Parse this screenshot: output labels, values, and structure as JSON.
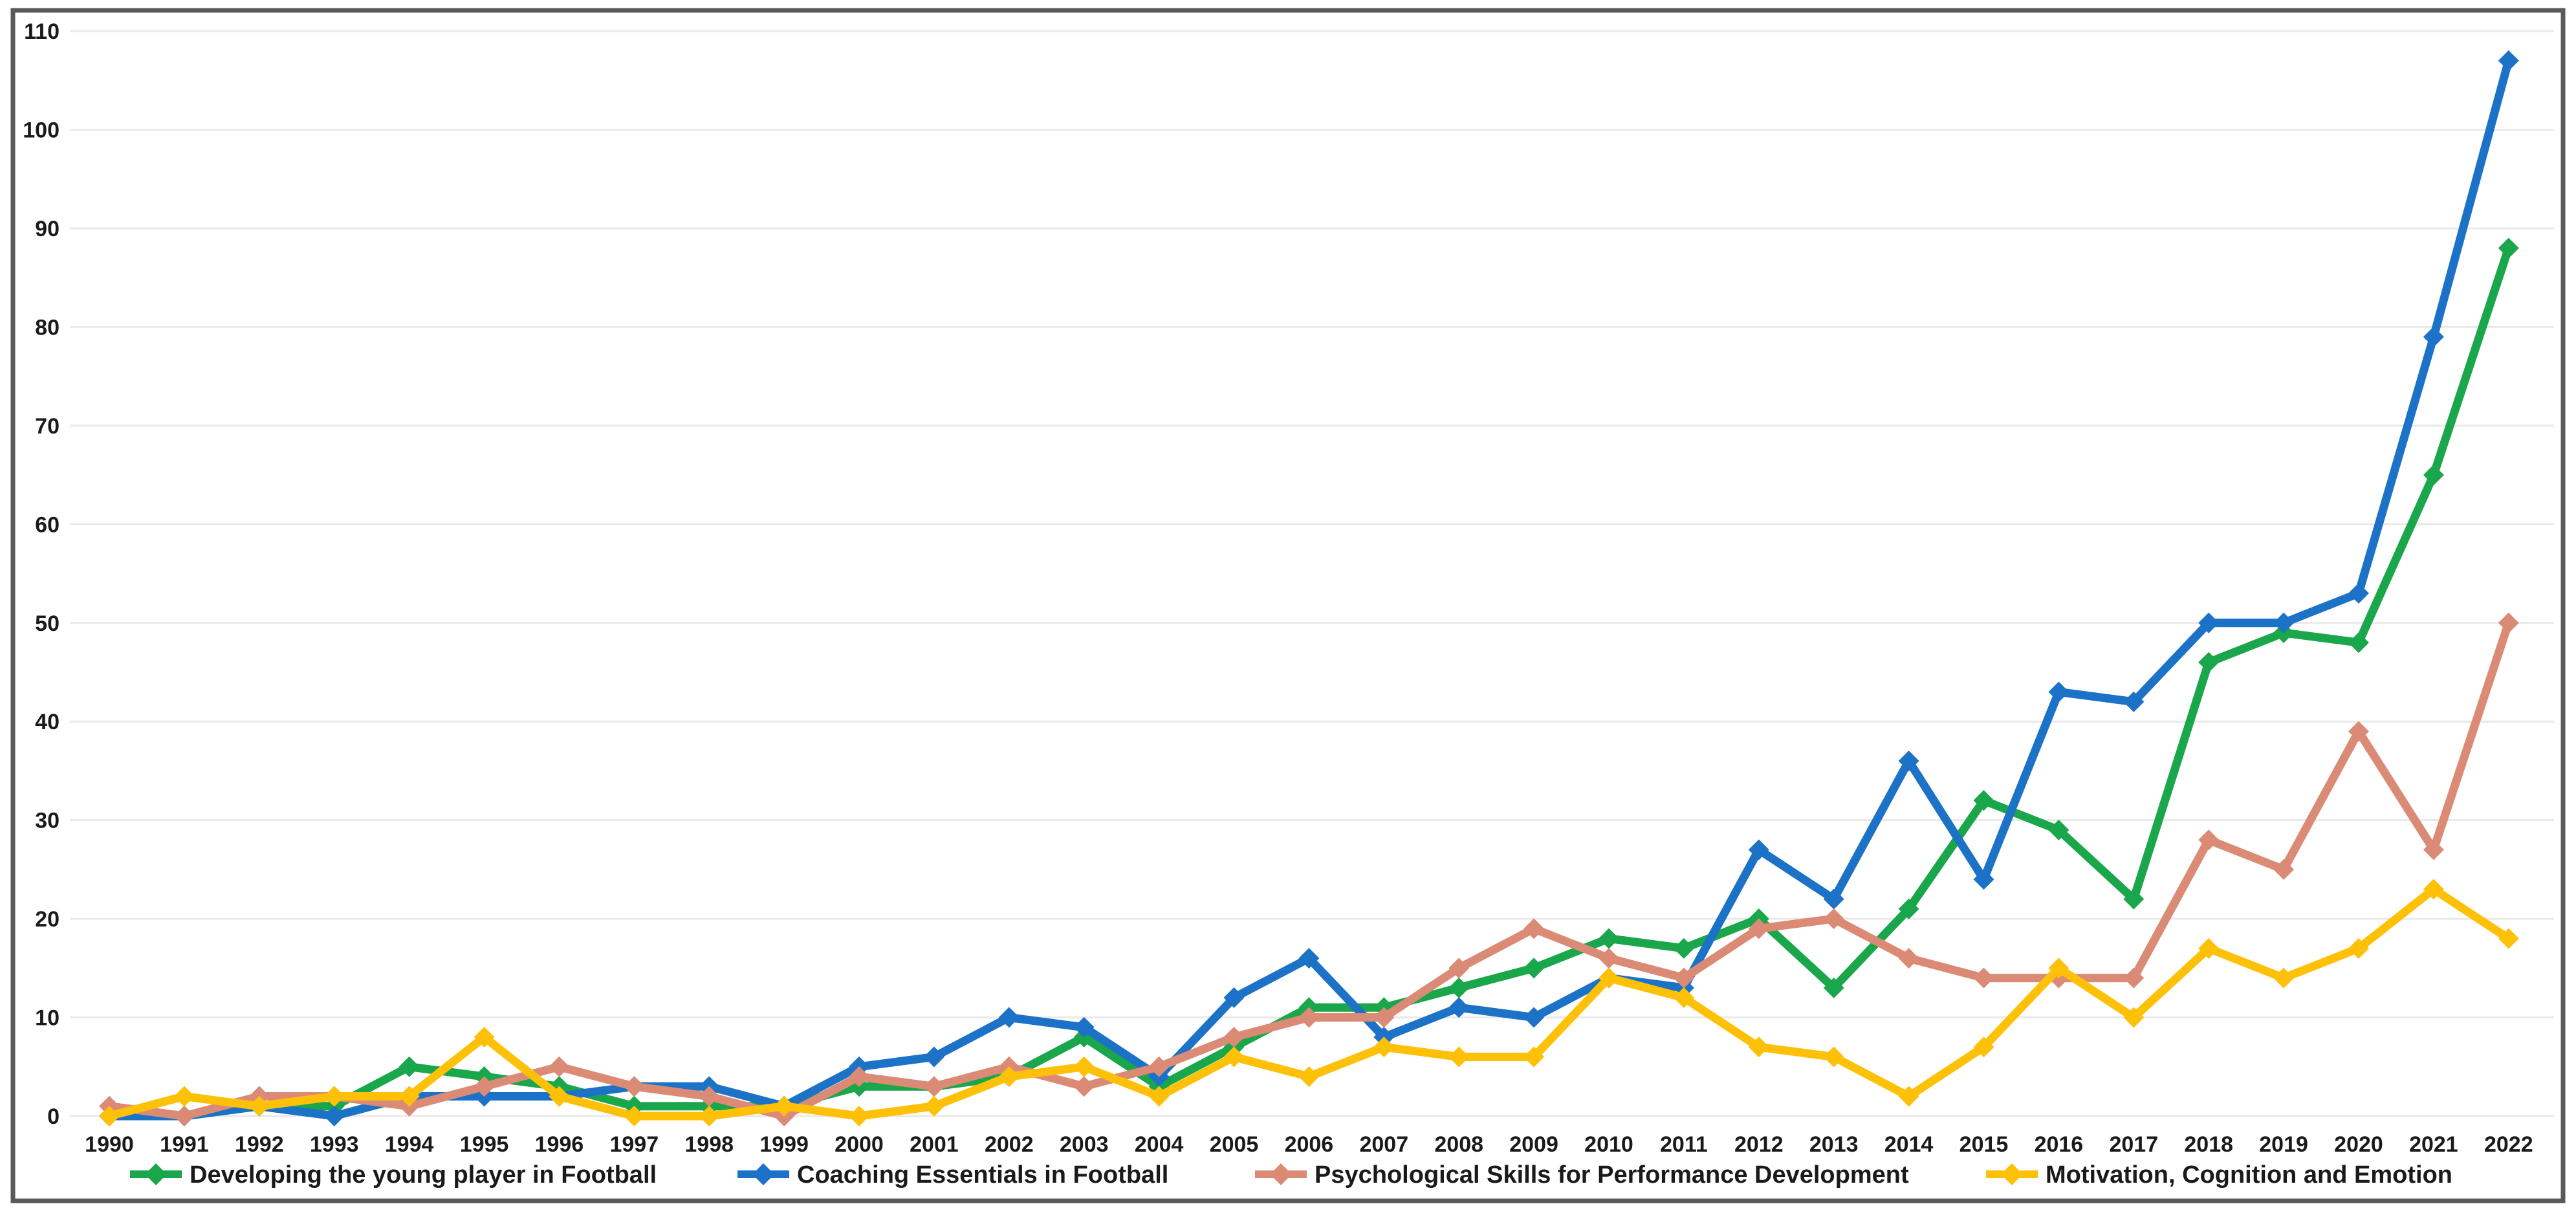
{
  "chart_data": {
    "type": "line",
    "title": "",
    "xlabel": "",
    "ylabel": "",
    "x": [
      "1990",
      "1991",
      "1992",
      "1993",
      "1994",
      "1995",
      "1996",
      "1997",
      "1998",
      "1999",
      "2000",
      "2001",
      "2002",
      "2003",
      "2004",
      "2005",
      "2006",
      "2007",
      "2008",
      "2009",
      "2010",
      "2011",
      "2012",
      "2013",
      "2014",
      "2015",
      "2016",
      "2017",
      "2018",
      "2019",
      "2020",
      "2021",
      "2022"
    ],
    "series": [
      {
        "name": "Developing the young player in Football",
        "color": "#1aa64a",
        "values": [
          0,
          0,
          1,
          1,
          5,
          4,
          3,
          1,
          1,
          1,
          3,
          3,
          4,
          8,
          3,
          7,
          11,
          11,
          13,
          15,
          18,
          17,
          20,
          13,
          21,
          32,
          29,
          22,
          46,
          49,
          48,
          65,
          88
        ]
      },
      {
        "name": "Coaching Essentials in Football",
        "color": "#1b72c6",
        "values": [
          0,
          0,
          1,
          0,
          2,
          2,
          2,
          3,
          3,
          1,
          5,
          6,
          10,
          9,
          4,
          12,
          16,
          8,
          11,
          10,
          14,
          13,
          27,
          22,
          36,
          24,
          43,
          42,
          50,
          50,
          53,
          79,
          107
        ]
      },
      {
        "name": "Psychological Skills for Performance Development",
        "color": "#db8b75",
        "values": [
          1,
          0,
          2,
          2,
          1,
          3,
          5,
          3,
          2,
          0,
          4,
          3,
          5,
          3,
          5,
          8,
          10,
          10,
          15,
          19,
          16,
          14,
          19,
          20,
          16,
          14,
          14,
          14,
          28,
          25,
          39,
          27,
          50
        ]
      },
      {
        "name": "Motivation, Cognition and Emotion",
        "color": "#ffc008",
        "values": [
          0,
          2,
          1,
          2,
          2,
          8,
          2,
          0,
          0,
          1,
          0,
          1,
          4,
          5,
          2,
          6,
          4,
          7,
          6,
          6,
          14,
          12,
          7,
          6,
          2,
          7,
          15,
          10,
          17,
          14,
          17,
          23,
          18
        ]
      }
    ],
    "ylim": [
      0,
      110
    ],
    "ytick_step": 10,
    "grid": true,
    "legend_position": "bottom"
  },
  "colors": {
    "background": "#ffffff",
    "grid": "#e9e9e9",
    "border": "#595959",
    "label": "#1a1a1a"
  }
}
